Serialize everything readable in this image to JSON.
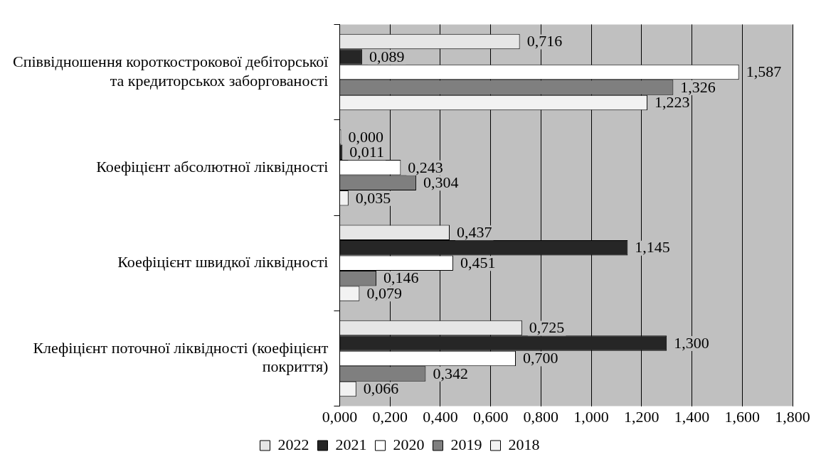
{
  "chart_data": {
    "type": "bar",
    "orientation": "horizontal",
    "categories": [
      "Співвідношення короткострокової дебіторської та кредиторськох заборгованості",
      "Коефіцієнт абсолютної ліквідності",
      "Коефіцієнт швидкої ліквідності",
      "Клефіцієнт поточної ліквідності (коефіцієнт покриття)"
    ],
    "series": [
      {
        "name": "2022",
        "color": "#e6e6e6",
        "values": [
          0.716,
          0.0,
          0.437,
          0.725
        ],
        "value_labels": [
          "0,716",
          "0,000",
          "0,437",
          "0,725"
        ]
      },
      {
        "name": "2021",
        "color": "#262626",
        "values": [
          0.089,
          0.011,
          1.145,
          1.3
        ],
        "value_labels": [
          "0,089",
          "0,011",
          "1,145",
          "1,300"
        ]
      },
      {
        "name": "2020",
        "color": "#ffffff",
        "values": [
          1.587,
          0.243,
          0.451,
          0.7
        ],
        "value_labels": [
          "1,587",
          "0,243",
          "0,451",
          "0,700"
        ]
      },
      {
        "name": "2019",
        "color": "#7f7f7f",
        "values": [
          1.326,
          0.304,
          0.146,
          0.342
        ],
        "value_labels": [
          "1,326",
          "0,304",
          "0,146",
          "0,342"
        ]
      },
      {
        "name": "2018",
        "color": "#f2f2f2",
        "values": [
          1.223,
          0.035,
          0.079,
          0.066
        ],
        "value_labels": [
          "1,223",
          "0,035",
          "0,079",
          "0,066"
        ]
      }
    ],
    "xlim": [
      0,
      1.8
    ],
    "xticks": [
      {
        "value": 0,
        "label": "0,000"
      },
      {
        "value": 0.2,
        "label": "0,200"
      },
      {
        "value": 0.4,
        "label": "0,400"
      },
      {
        "value": 0.6,
        "label": "0,600"
      },
      {
        "value": 0.8,
        "label": "0,800"
      },
      {
        "value": 1.0,
        "label": "1,000"
      },
      {
        "value": 1.2,
        "label": "1,200"
      },
      {
        "value": 1.4,
        "label": "1,400"
      },
      {
        "value": 1.6,
        "label": "1,600"
      },
      {
        "value": 1.8,
        "label": "1,800"
      }
    ],
    "grid": "x",
    "legend": "bottom"
  }
}
